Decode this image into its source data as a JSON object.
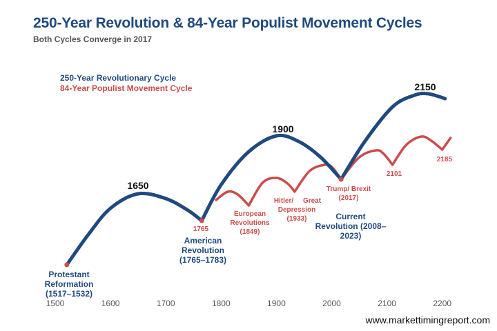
{
  "title": "250-Year Revolution & 84-Year Populist Movement Cycles",
  "subtitle": "Both Cycles Converge in 2017",
  "footer": "www.markettimingreport.com",
  "chart_data": {
    "type": "line",
    "title": "250-Year Revolution & 84-Year Populist Movement Cycles",
    "subtitle": "Both Cycles Converge in 2017",
    "xlabel": "",
    "ylabel": "",
    "xlim": [
      1500,
      2215
    ],
    "xticks": [
      1500,
      1600,
      1700,
      1800,
      1900,
      2000,
      2100,
      2200
    ],
    "grid": false,
    "legend": "top-left",
    "colors": {
      "revolution": "#1f4a7f",
      "populist": "#cc4b4b",
      "title": "#1f4a7f"
    },
    "series": [
      {
        "name": "250-Year Revolutionary Cycle",
        "color": "#1f4a7f",
        "cusps": [
          1765,
          2017
        ],
        "points": [
          [
            1521,
            16
          ],
          [
            1560,
            60
          ],
          [
            1600,
            98
          ],
          [
            1650,
            119
          ],
          [
            1700,
            112
          ],
          [
            1740,
            95
          ],
          [
            1765,
            80
          ],
          [
            1800,
            132
          ],
          [
            1850,
            180
          ],
          [
            1900,
            203
          ],
          [
            1940,
            195
          ],
          [
            1980,
            172
          ],
          [
            2017,
            140
          ],
          [
            2060,
            195
          ],
          [
            2110,
            245
          ],
          [
            2150,
            262
          ],
          [
            2175,
            264
          ],
          [
            2205,
            257
          ]
        ]
      },
      {
        "name": "84-Year Populist Movement Cycle",
        "color": "#cc4b4b",
        "cusps": [
          1850,
          1933,
          2017,
          2110,
          2200
        ],
        "points": [
          [
            1791,
            110
          ],
          [
            1812,
            122
          ],
          [
            1830,
            118
          ],
          [
            1850,
            102
          ],
          [
            1875,
            135
          ],
          [
            1900,
            142
          ],
          [
            1920,
            134
          ],
          [
            1933,
            122
          ],
          [
            1960,
            152
          ],
          [
            1987,
            161
          ],
          [
            2000,
            158
          ],
          [
            2017,
            140
          ],
          [
            2050,
            172
          ],
          [
            2081,
            182
          ],
          [
            2095,
            176
          ],
          [
            2110,
            161
          ],
          [
            2135,
            190
          ],
          [
            2162,
            202
          ],
          [
            2180,
            196
          ],
          [
            2200,
            183
          ],
          [
            2215,
            200
          ]
        ]
      }
    ],
    "markers": [
      {
        "year": 1521,
        "level": 16
      },
      {
        "year": 1765,
        "level": 80
      },
      {
        "year": 2017,
        "level": 140
      }
    ],
    "annotations": {
      "peak_1650": "1650",
      "peak_1900": "1900",
      "peak_2150": "2150",
      "protestant": [
        "Protestant",
        "Reformation",
        "(1517–1532)"
      ],
      "american": [
        "American",
        "Revolution",
        "(1765–1783)"
      ],
      "current": [
        "Current",
        "Revolution (2008–",
        "2023)"
      ],
      "red_1765": "1765",
      "european": [
        "European",
        "Revolutions",
        "(1849)"
      ],
      "hitler": [
        "Hitler/",
        "Great",
        "Depression",
        "(1933)"
      ],
      "trump": [
        "Trump/ Brexit",
        "(2017)"
      ],
      "red_2101": "2101",
      "red_2185": "2185"
    }
  }
}
